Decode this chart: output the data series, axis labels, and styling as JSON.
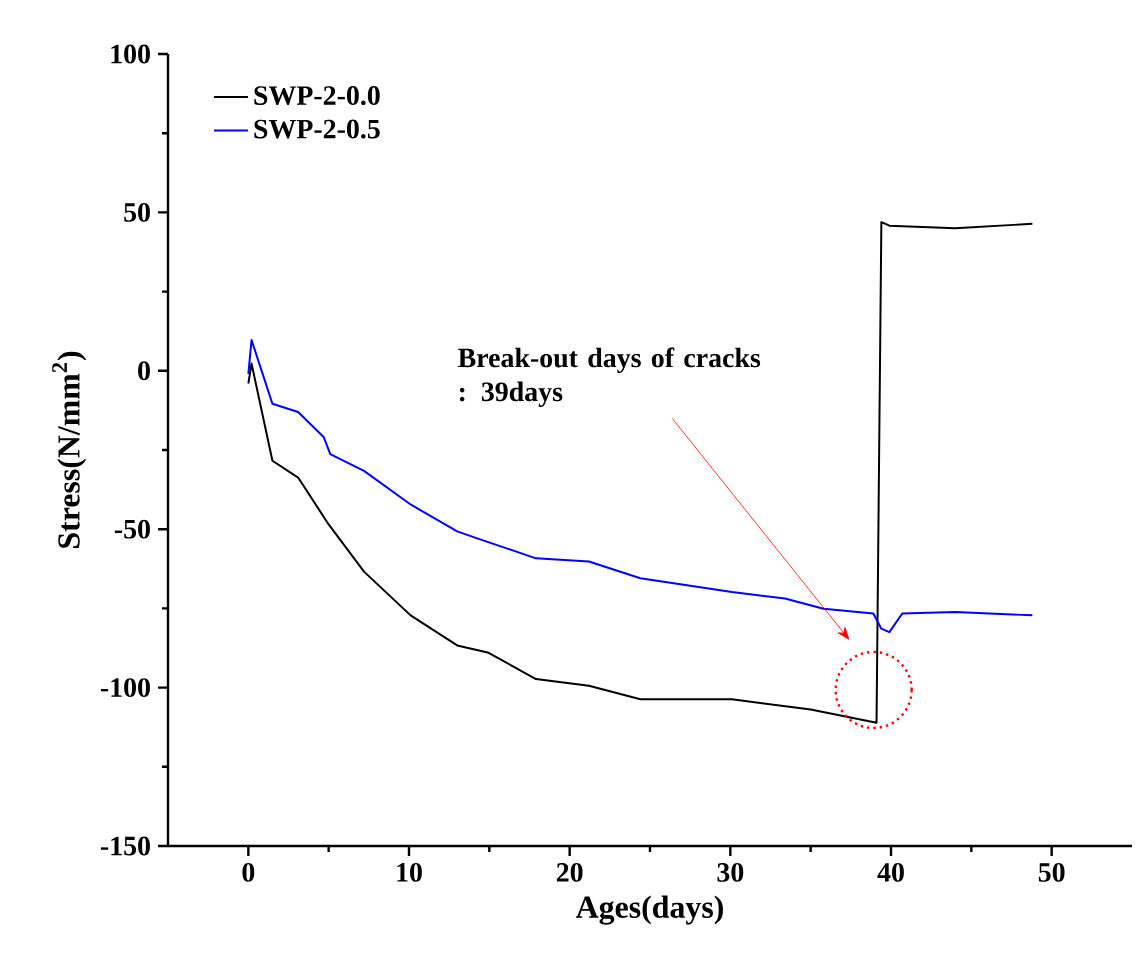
{
  "chart_data": {
    "type": "line",
    "xlabel": "Ages(days)",
    "ylabel": "Stress(N/mm$^{2}$)",
    "xlim": [
      -5,
      55
    ],
    "ylim": [
      -150,
      100
    ],
    "xticks": [
      0,
      10,
      20,
      30,
      40,
      50
    ],
    "yticks": [
      -150,
      -100,
      -50,
      0,
      50,
      100
    ],
    "legend": "top left",
    "grid": false,
    "marker": "none",
    "line_style": "solid",
    "series": [
      {
        "name": "SWP-2-0.0",
        "color": "#000000",
        "x": [
          0,
          0.2,
          1.5,
          3.1,
          5.0,
          7.2,
          10.1,
          13.0,
          14.9,
          17.9,
          21.2,
          24.4,
          30.1,
          35.0,
          39.1,
          39.4,
          39.9,
          44,
          48.8
        ],
        "values": [
          -4,
          2.3,
          -28.4,
          -33.7,
          -48.5,
          -63.4,
          -77.2,
          -86.7,
          -88.9,
          -97.3,
          -99.4,
          -103.7,
          -103.7,
          -106.9,
          -111.1,
          46.9,
          45.8,
          45,
          46.4
        ]
      },
      {
        "name": "SWP-2-0.5",
        "color": "#0000ff",
        "x": [
          0,
          0.2,
          1.5,
          3.1,
          4.7,
          5.1,
          7.2,
          10.1,
          13.0,
          14.2,
          17.9,
          21.2,
          24.4,
          30.1,
          33.4,
          35.8,
          38.9,
          39.4,
          39.9,
          40.7,
          44,
          48.8
        ],
        "values": [
          -1,
          9.7,
          -10.4,
          -13,
          -21,
          -26.3,
          -31.6,
          -42.2,
          -50.7,
          -52.8,
          -59.2,
          -60.2,
          -65.5,
          -69.8,
          -71.9,
          -75.1,
          -76.6,
          -81.4,
          -82.5,
          -76.6,
          -76.1,
          -77.2
        ]
      }
    ],
    "annotations": [
      "Break-out days of cracks : 39days"
    ]
  }
}
